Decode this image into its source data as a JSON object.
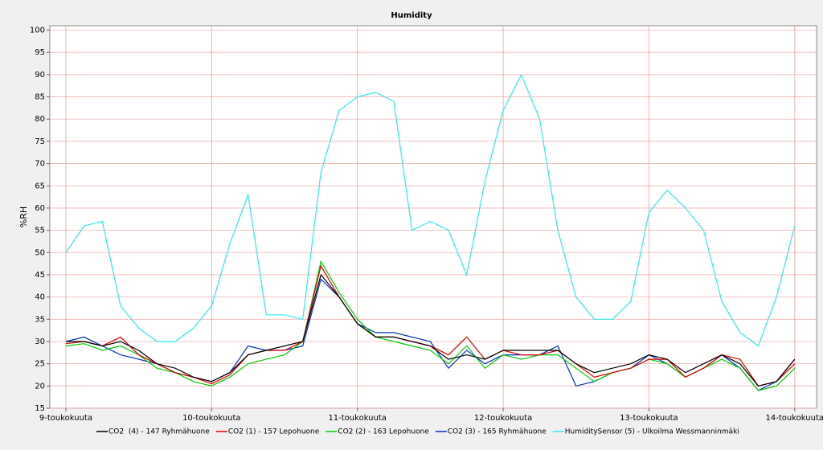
{
  "chart_data": {
    "type": "line",
    "title": "Humidity",
    "y_label": "%RH",
    "x": [
      9,
      9.125,
      9.25,
      9.375,
      9.5,
      9.625,
      9.75,
      9.875,
      10,
      10.125,
      10.25,
      10.375,
      10.5,
      10.625,
      10.75,
      10.875,
      11,
      11.125,
      11.25,
      11.375,
      11.5,
      11.625,
      11.75,
      11.875,
      12,
      12.125,
      12.25,
      12.375,
      12.5,
      12.625,
      12.75,
      12.875,
      13,
      13.125,
      13.25,
      13.375,
      13.5,
      13.625,
      13.75,
      13.875,
      14
    ],
    "xlim": [
      8.89,
      14.15
    ],
    "xticks": [
      {
        "value": 9,
        "label": "9-toukokuuta"
      },
      {
        "value": 10,
        "label": "10-toukokuuta"
      },
      {
        "value": 11,
        "label": "11-toukokuuta"
      },
      {
        "value": 12,
        "label": "12-toukokuuta"
      },
      {
        "value": 13,
        "label": "13-toukokuuta"
      },
      {
        "value": 14,
        "label": "14-toukokuuta"
      }
    ],
    "ylim": [
      15,
      101
    ],
    "yticks": [
      15,
      20,
      25,
      30,
      35,
      40,
      45,
      50,
      55,
      60,
      65,
      70,
      75,
      80,
      85,
      90,
      95,
      100
    ],
    "grid": true,
    "series": [
      {
        "name": "CO2  (4) - 147 Ryhmähuone",
        "color": "#000000",
        "values": [
          30,
          30,
          29,
          30,
          28,
          25,
          24,
          22,
          21,
          23,
          27,
          28,
          29,
          30,
          45,
          40,
          34,
          31,
          31,
          30,
          29,
          26,
          27,
          26,
          28,
          28,
          28,
          28,
          25,
          23,
          24,
          25,
          27,
          26,
          23,
          25,
          27,
          25,
          20,
          21,
          26
        ]
      },
      {
        "name": "CO2 (1) - 157 Lepohuone",
        "color": "#e00000",
        "values": [
          29.5,
          30,
          29,
          31,
          27,
          25,
          23,
          22,
          20.5,
          22.5,
          27,
          28,
          28,
          30,
          47,
          40,
          34,
          31,
          31,
          30,
          29,
          27,
          31,
          26,
          28,
          27,
          27,
          28,
          25,
          22,
          23,
          24,
          26,
          26,
          22,
          24,
          27,
          26,
          20,
          21,
          25
        ]
      },
      {
        "name": "CO2 (2) - 163 Lepohuone",
        "color": "#00cc00",
        "values": [
          29,
          29.5,
          28,
          29,
          27,
          24,
          23,
          21,
          20,
          22,
          25,
          26,
          27,
          30,
          48,
          41,
          35,
          31,
          30,
          29,
          28,
          25,
          29,
          24,
          27,
          26,
          27,
          27,
          24,
          21,
          23,
          24,
          26,
          25,
          22,
          24,
          26,
          24,
          19,
          20,
          24
        ]
      },
      {
        "name": "CO2 (3) - 165 Ryhmähuone",
        "color": "#0030c0",
        "values": [
          30,
          31,
          29,
          27,
          26,
          25,
          23,
          22,
          21,
          23,
          29,
          28,
          28,
          29,
          44,
          40,
          34,
          32,
          32,
          31,
          30,
          24,
          28,
          25,
          27,
          27,
          27,
          29,
          20,
          21,
          23,
          24,
          27,
          25,
          22,
          24,
          27,
          24,
          19,
          21,
          26
        ]
      },
      {
        "name": "HumiditySensor (5) - Ulkoilma Wessmanninmäki",
        "color": "#30e8e8",
        "values": [
          50,
          56,
          57,
          38,
          33,
          30,
          30,
          33,
          38,
          52,
          63,
          36,
          36,
          35,
          68,
          82,
          85,
          86,
          84,
          55,
          57,
          55,
          45,
          66,
          82,
          90,
          80,
          55,
          40,
          35,
          35,
          39,
          59,
          64,
          60,
          55,
          39,
          32,
          29,
          40,
          56
        ]
      }
    ]
  }
}
